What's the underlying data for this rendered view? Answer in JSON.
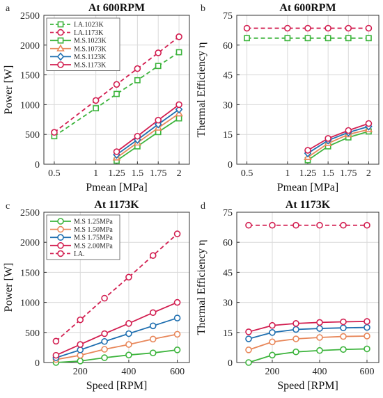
{
  "figure": {
    "panels": [
      {
        "letter": "a"
      },
      {
        "letter": "b"
      },
      {
        "letter": "c"
      },
      {
        "letter": "d"
      }
    ]
  },
  "chart_data": [
    {
      "type": "line",
      "title": "At 600RPM",
      "xlabel": "Pmean [MPa]",
      "ylabel": "Power [W]",
      "x_ticks": [
        0.5,
        1,
        1.25,
        1.5,
        1.75,
        2
      ],
      "x_tick_labels": [
        "0.5",
        "1",
        "1.25",
        "1.5",
        "1.75",
        "2"
      ],
      "xlim": [
        0.375,
        2.125
      ],
      "y_ticks": [
        0,
        500,
        1000,
        1500,
        2000,
        2500
      ],
      "y_tick_labels": [
        "0",
        "500",
        "1000",
        "1500",
        "2000",
        "2500"
      ],
      "ylim": [
        0,
        2500
      ],
      "grid": true,
      "legend_position": "top-left",
      "series": [
        {
          "name": "I.A.1023K",
          "color": "#3cb43c",
          "dashed": true,
          "marker": "square",
          "x": [
            0.5,
            1,
            1.25,
            1.5,
            1.75,
            2
          ],
          "y": [
            470,
            940,
            1180,
            1410,
            1650,
            1880
          ]
        },
        {
          "name": "I.A.1173K",
          "color": "#d21e50",
          "dashed": true,
          "marker": "circle",
          "x": [
            0.5,
            1,
            1.25,
            1.5,
            1.75,
            2
          ],
          "y": [
            535,
            1070,
            1340,
            1605,
            1870,
            2140
          ]
        },
        {
          "name": "M.S.1023K",
          "color": "#3cb43c",
          "dashed": false,
          "marker": "square",
          "x": [
            1.25,
            1.5,
            1.75,
            2
          ],
          "y": [
            60,
            300,
            540,
            770
          ]
        },
        {
          "name": "M.S.1073K",
          "color": "#e8875a",
          "dashed": false,
          "marker": "triangle",
          "x": [
            1.25,
            1.5,
            1.75,
            2
          ],
          "y": [
            110,
            360,
            610,
            850
          ]
        },
        {
          "name": "M.S.1123K",
          "color": "#1f6fb0",
          "dashed": false,
          "marker": "diamond",
          "x": [
            1.25,
            1.5,
            1.75,
            2
          ],
          "y": [
            160,
            410,
            670,
            920
          ]
        },
        {
          "name": "M.S.1173K",
          "color": "#d21e50",
          "dashed": false,
          "marker": "circle",
          "x": [
            1.25,
            1.5,
            1.75,
            2
          ],
          "y": [
            210,
            470,
            740,
            1000
          ]
        }
      ]
    },
    {
      "type": "line",
      "title": "At 600RPM",
      "xlabel": "Pmean [MPa]",
      "ylabel": "Thermal Efficiency η",
      "x_ticks": [
        0.5,
        1,
        1.25,
        1.5,
        1.75,
        2
      ],
      "x_tick_labels": [
        "0.5",
        "1",
        "1.25",
        "1.5",
        "1.75",
        "2"
      ],
      "xlim": [
        0.375,
        2.125
      ],
      "y_ticks": [
        0,
        15,
        30,
        45,
        60,
        75
      ],
      "y_tick_labels": [
        "0",
        "15",
        "30",
        "45",
        "60",
        "75"
      ],
      "ylim": [
        0,
        75
      ],
      "grid": true,
      "series": [
        {
          "color": "#3cb43c",
          "dashed": true,
          "marker": "square",
          "x": [
            0.5,
            1,
            1.25,
            1.5,
            1.75,
            2
          ],
          "y": [
            63.5,
            63.5,
            63.5,
            63.5,
            63.5,
            63.5
          ]
        },
        {
          "color": "#d21e50",
          "dashed": true,
          "marker": "circle",
          "x": [
            0.5,
            1,
            1.25,
            1.5,
            1.75,
            2
          ],
          "y": [
            68.5,
            68.5,
            68.5,
            68.5,
            68.5,
            68.5
          ]
        },
        {
          "color": "#3cb43c",
          "dashed": false,
          "marker": "square",
          "x": [
            1.25,
            1.5,
            1.75,
            2
          ],
          "y": [
            2,
            9,
            13.5,
            16.5
          ]
        },
        {
          "color": "#e8875a",
          "dashed": false,
          "marker": "triangle",
          "x": [
            1.25,
            1.5,
            1.75,
            2
          ],
          "y": [
            3.5,
            10.5,
            15,
            17.5
          ]
        },
        {
          "color": "#1f6fb0",
          "dashed": false,
          "marker": "diamond",
          "x": [
            1.25,
            1.5,
            1.75,
            2
          ],
          "y": [
            5.5,
            12,
            16,
            19
          ]
        },
        {
          "color": "#d21e50",
          "dashed": false,
          "marker": "circle",
          "x": [
            1.25,
            1.5,
            1.75,
            2
          ],
          "y": [
            7,
            13,
            17,
            20.5
          ]
        }
      ]
    },
    {
      "type": "line",
      "title": "At 1173K",
      "xlabel": "Speed [RPM]",
      "ylabel": "Power [W]",
      "x_ticks": [
        200,
        400,
        600
      ],
      "x_tick_labels": [
        "200",
        "400",
        "600"
      ],
      "xlim": [
        50,
        650
      ],
      "y_ticks": [
        0,
        500,
        1000,
        1500,
        2000,
        2500
      ],
      "y_tick_labels": [
        "0",
        "500",
        "1000",
        "1500",
        "2000",
        "2500"
      ],
      "ylim": [
        0,
        2500
      ],
      "grid": true,
      "legend_position": "top-left",
      "series": [
        {
          "name": "M.S 1.25MPa",
          "color": "#3cb43c",
          "dashed": false,
          "marker": "circle",
          "x": [
            100,
            200,
            300,
            400,
            500,
            600
          ],
          "y": [
            0,
            25,
            80,
            125,
            160,
            210
          ]
        },
        {
          "name": "M.S 1.50MPa",
          "color": "#e8875a",
          "dashed": false,
          "marker": "circle",
          "x": [
            100,
            200,
            300,
            400,
            500,
            600
          ],
          "y": [
            50,
            120,
            220,
            300,
            390,
            470
          ]
        },
        {
          "name": "M.S 1.75MPa",
          "color": "#1f6fb0",
          "dashed": false,
          "marker": "circle",
          "x": [
            100,
            200,
            300,
            400,
            500,
            600
          ],
          "y": [
            80,
            210,
            350,
            480,
            610,
            740
          ]
        },
        {
          "name": "M.S 2.00MPa",
          "color": "#d21e50",
          "dashed": false,
          "marker": "circle",
          "x": [
            100,
            200,
            300,
            400,
            500,
            600
          ],
          "y": [
            120,
            300,
            480,
            650,
            830,
            1000
          ]
        },
        {
          "name": "I.A.",
          "color": "#d21e50",
          "dashed": true,
          "marker": "circle",
          "x": [
            100,
            200,
            300,
            400,
            500,
            600
          ],
          "y": [
            355,
            710,
            1070,
            1420,
            1780,
            2140
          ]
        }
      ]
    },
    {
      "type": "line",
      "title": "At 1173K",
      "xlabel": "Speed [RPM]",
      "ylabel": "Thermal Efficiency η",
      "x_ticks": [
        200,
        400,
        600
      ],
      "x_tick_labels": [
        "200",
        "400",
        "600"
      ],
      "xlim": [
        50,
        650
      ],
      "y_ticks": [
        0,
        15,
        30,
        45,
        60,
        75
      ],
      "y_tick_labels": [
        "0",
        "15",
        "30",
        "45",
        "60",
        "75"
      ],
      "ylim": [
        0,
        75
      ],
      "grid": true,
      "series": [
        {
          "color": "#3cb43c",
          "dashed": false,
          "marker": "circle",
          "x": [
            100,
            200,
            300,
            400,
            500,
            600
          ],
          "y": [
            0,
            3.7,
            5.3,
            6,
            6.5,
            6.8
          ]
        },
        {
          "color": "#e8875a",
          "dashed": false,
          "marker": "circle",
          "x": [
            100,
            200,
            300,
            400,
            500,
            600
          ],
          "y": [
            6.3,
            10.3,
            11.8,
            12.5,
            13,
            13.2
          ]
        },
        {
          "color": "#1f6fb0",
          "dashed": false,
          "marker": "circle",
          "x": [
            100,
            200,
            300,
            400,
            500,
            600
          ],
          "y": [
            11.8,
            15,
            16.5,
            17,
            17.3,
            17.5
          ]
        },
        {
          "color": "#d21e50",
          "dashed": false,
          "marker": "circle",
          "x": [
            100,
            200,
            300,
            400,
            500,
            600
          ],
          "y": [
            15.3,
            18.5,
            19.5,
            20,
            20.3,
            20.5
          ]
        },
        {
          "color": "#d21e50",
          "dashed": true,
          "marker": "circle",
          "x": [
            100,
            200,
            300,
            400,
            500,
            600
          ],
          "y": [
            68.5,
            68.5,
            68.5,
            68.5,
            68.5,
            68.5
          ]
        }
      ]
    }
  ]
}
